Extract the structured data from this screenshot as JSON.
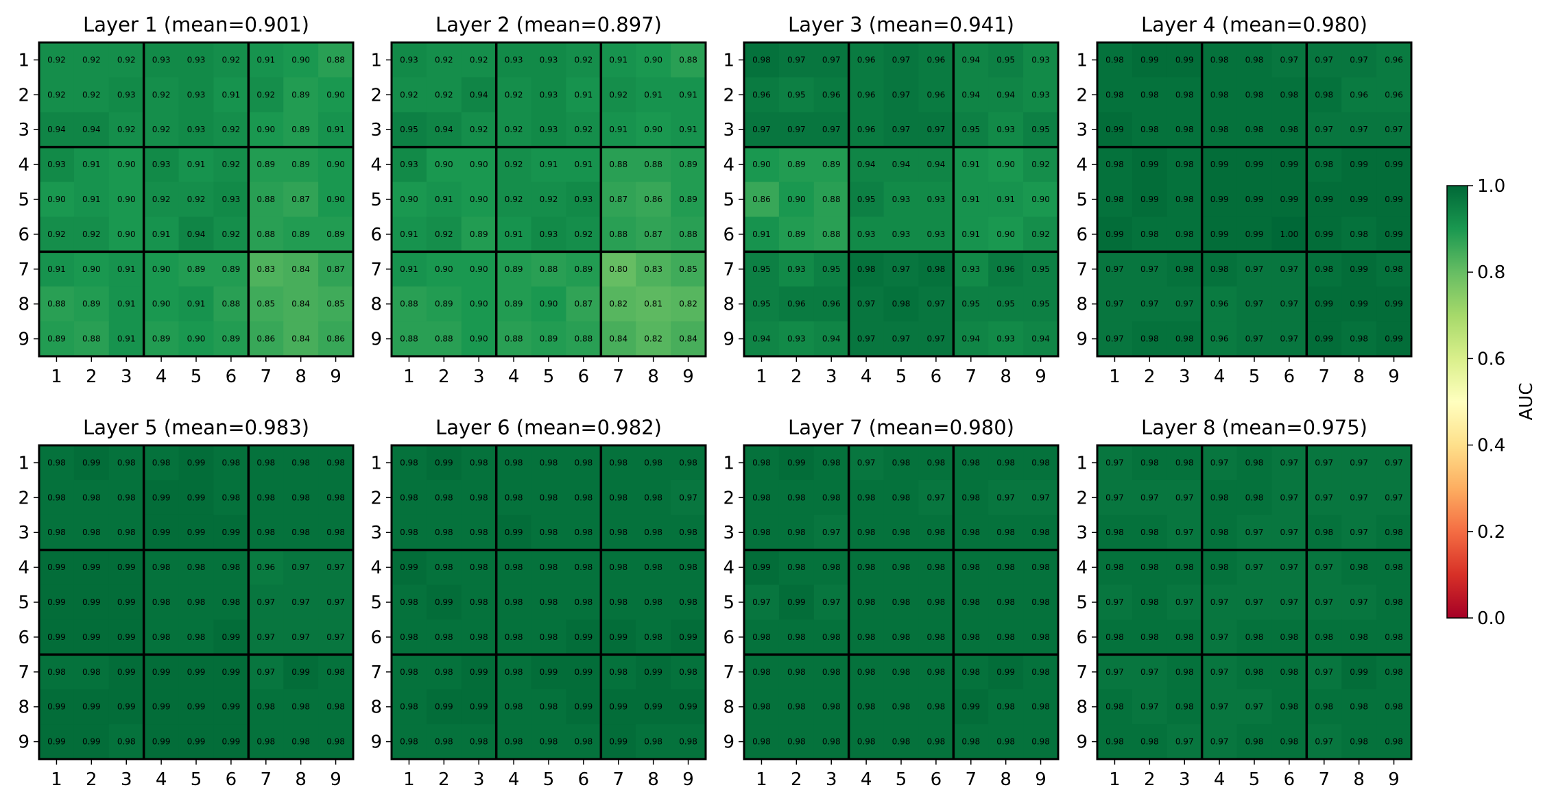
{
  "figure": {
    "colorbar": {
      "label": "AUC",
      "ticks": [
        "0.0",
        "0.2",
        "0.4",
        "0.6",
        "0.8",
        "1.0"
      ],
      "range": [
        0.0,
        1.0
      ],
      "colormap": "RdYlGn"
    }
  },
  "chart_data": [
    {
      "type": "heatmap",
      "title": "Layer 1 (mean=0.901)",
      "x_tick_labels": [
        "1",
        "2",
        "3",
        "4",
        "5",
        "6",
        "7",
        "8",
        "9"
      ],
      "y_tick_labels": [
        "1",
        "2",
        "3",
        "4",
        "5",
        "6",
        "7",
        "8",
        "9"
      ],
      "values": [
        [
          0.92,
          0.92,
          0.92,
          0.93,
          0.93,
          0.92,
          0.91,
          0.9,
          0.88
        ],
        [
          0.92,
          0.92,
          0.93,
          0.92,
          0.93,
          0.91,
          0.92,
          0.89,
          0.9
        ],
        [
          0.94,
          0.94,
          0.92,
          0.92,
          0.93,
          0.92,
          0.9,
          0.89,
          0.91
        ],
        [
          0.93,
          0.91,
          0.9,
          0.93,
          0.91,
          0.92,
          0.89,
          0.89,
          0.9
        ],
        [
          0.9,
          0.91,
          0.9,
          0.92,
          0.92,
          0.93,
          0.88,
          0.87,
          0.9
        ],
        [
          0.92,
          0.92,
          0.9,
          0.91,
          0.94,
          0.92,
          0.88,
          0.89,
          0.89
        ],
        [
          0.91,
          0.9,
          0.91,
          0.9,
          0.89,
          0.89,
          0.83,
          0.84,
          0.87
        ],
        [
          0.88,
          0.89,
          0.91,
          0.9,
          0.91,
          0.88,
          0.85,
          0.84,
          0.85
        ],
        [
          0.89,
          0.88,
          0.91,
          0.89,
          0.9,
          0.89,
          0.86,
          0.84,
          0.86
        ]
      ]
    },
    {
      "type": "heatmap",
      "title": "Layer 2 (mean=0.897)",
      "x_tick_labels": [
        "1",
        "2",
        "3",
        "4",
        "5",
        "6",
        "7",
        "8",
        "9"
      ],
      "y_tick_labels": [
        "1",
        "2",
        "3",
        "4",
        "5",
        "6",
        "7",
        "8",
        "9"
      ],
      "values": [
        [
          0.93,
          0.92,
          0.92,
          0.93,
          0.93,
          0.92,
          0.91,
          0.9,
          0.88
        ],
        [
          0.92,
          0.92,
          0.94,
          0.92,
          0.93,
          0.91,
          0.92,
          0.91,
          0.91
        ],
        [
          0.95,
          0.94,
          0.92,
          0.92,
          0.93,
          0.92,
          0.91,
          0.9,
          0.91
        ],
        [
          0.93,
          0.9,
          0.9,
          0.92,
          0.91,
          0.91,
          0.88,
          0.88,
          0.89
        ],
        [
          0.9,
          0.91,
          0.9,
          0.92,
          0.92,
          0.93,
          0.87,
          0.86,
          0.89
        ],
        [
          0.91,
          0.92,
          0.89,
          0.91,
          0.93,
          0.92,
          0.88,
          0.87,
          0.88
        ],
        [
          0.91,
          0.9,
          0.9,
          0.89,
          0.88,
          0.89,
          0.8,
          0.83,
          0.85
        ],
        [
          0.88,
          0.89,
          0.9,
          0.89,
          0.9,
          0.87,
          0.82,
          0.81,
          0.82
        ],
        [
          0.88,
          0.88,
          0.9,
          0.88,
          0.89,
          0.88,
          0.84,
          0.82,
          0.84
        ]
      ]
    },
    {
      "type": "heatmap",
      "title": "Layer 3 (mean=0.941)",
      "x_tick_labels": [
        "1",
        "2",
        "3",
        "4",
        "5",
        "6",
        "7",
        "8",
        "9"
      ],
      "y_tick_labels": [
        "1",
        "2",
        "3",
        "4",
        "5",
        "6",
        "7",
        "8",
        "9"
      ],
      "values": [
        [
          0.98,
          0.97,
          0.97,
          0.96,
          0.97,
          0.96,
          0.94,
          0.95,
          0.93
        ],
        [
          0.96,
          0.95,
          0.96,
          0.96,
          0.97,
          0.96,
          0.94,
          0.94,
          0.93
        ],
        [
          0.97,
          0.97,
          0.97,
          0.96,
          0.97,
          0.97,
          0.95,
          0.93,
          0.95
        ],
        [
          0.9,
          0.89,
          0.89,
          0.94,
          0.94,
          0.94,
          0.91,
          0.9,
          0.92
        ],
        [
          0.86,
          0.9,
          0.88,
          0.95,
          0.93,
          0.93,
          0.91,
          0.91,
          0.9
        ],
        [
          0.91,
          0.89,
          0.88,
          0.93,
          0.93,
          0.93,
          0.91,
          0.9,
          0.92
        ],
        [
          0.95,
          0.93,
          0.95,
          0.98,
          0.97,
          0.98,
          0.93,
          0.96,
          0.95
        ],
        [
          0.95,
          0.96,
          0.96,
          0.97,
          0.98,
          0.97,
          0.95,
          0.95,
          0.95
        ],
        [
          0.94,
          0.93,
          0.94,
          0.97,
          0.97,
          0.97,
          0.94,
          0.93,
          0.94
        ]
      ]
    },
    {
      "type": "heatmap",
      "title": "Layer 4 (mean=0.980)",
      "x_tick_labels": [
        "1",
        "2",
        "3",
        "4",
        "5",
        "6",
        "7",
        "8",
        "9"
      ],
      "y_tick_labels": [
        "1",
        "2",
        "3",
        "4",
        "5",
        "6",
        "7",
        "8",
        "9"
      ],
      "values": [
        [
          0.98,
          0.99,
          0.99,
          0.98,
          0.98,
          0.97,
          0.97,
          0.97,
          0.96
        ],
        [
          0.98,
          0.98,
          0.98,
          0.98,
          0.98,
          0.98,
          0.98,
          0.96,
          0.96
        ],
        [
          0.99,
          0.98,
          0.98,
          0.98,
          0.98,
          0.98,
          0.97,
          0.97,
          0.97
        ],
        [
          0.98,
          0.99,
          0.98,
          0.99,
          0.99,
          0.99,
          0.98,
          0.99,
          0.99
        ],
        [
          0.98,
          0.99,
          0.98,
          0.99,
          0.99,
          0.99,
          0.99,
          0.99,
          0.99
        ],
        [
          0.99,
          0.98,
          0.98,
          0.99,
          0.99,
          1.0,
          0.99,
          0.98,
          0.99
        ],
        [
          0.97,
          0.97,
          0.98,
          0.98,
          0.97,
          0.97,
          0.98,
          0.99,
          0.98
        ],
        [
          0.97,
          0.97,
          0.97,
          0.96,
          0.97,
          0.97,
          0.99,
          0.99,
          0.99
        ],
        [
          0.97,
          0.98,
          0.98,
          0.96,
          0.97,
          0.97,
          0.99,
          0.98,
          0.99
        ]
      ]
    },
    {
      "type": "heatmap",
      "title": "Layer 5 (mean=0.983)",
      "x_tick_labels": [
        "1",
        "2",
        "3",
        "4",
        "5",
        "6",
        "7",
        "8",
        "9"
      ],
      "y_tick_labels": [
        "1",
        "2",
        "3",
        "4",
        "5",
        "6",
        "7",
        "8",
        "9"
      ],
      "values": [
        [
          0.98,
          0.99,
          0.98,
          0.98,
          0.99,
          0.98,
          0.98,
          0.98,
          0.98
        ],
        [
          0.98,
          0.98,
          0.98,
          0.99,
          0.99,
          0.98,
          0.98,
          0.98,
          0.98
        ],
        [
          0.98,
          0.98,
          0.98,
          0.99,
          0.99,
          0.99,
          0.98,
          0.98,
          0.98
        ],
        [
          0.99,
          0.99,
          0.99,
          0.98,
          0.98,
          0.98,
          0.96,
          0.97,
          0.97
        ],
        [
          0.99,
          0.99,
          0.99,
          0.98,
          0.98,
          0.98,
          0.97,
          0.97,
          0.97
        ],
        [
          0.99,
          0.99,
          0.99,
          0.98,
          0.98,
          0.99,
          0.97,
          0.97,
          0.97
        ],
        [
          0.98,
          0.98,
          0.99,
          0.99,
          0.99,
          0.99,
          0.97,
          0.99,
          0.98
        ],
        [
          0.99,
          0.99,
          0.99,
          0.99,
          0.99,
          0.99,
          0.98,
          0.98,
          0.98
        ],
        [
          0.99,
          0.99,
          0.98,
          0.99,
          0.99,
          0.99,
          0.98,
          0.98,
          0.98
        ]
      ]
    },
    {
      "type": "heatmap",
      "title": "Layer 6 (mean=0.982)",
      "x_tick_labels": [
        "1",
        "2",
        "3",
        "4",
        "5",
        "6",
        "7",
        "8",
        "9"
      ],
      "y_tick_labels": [
        "1",
        "2",
        "3",
        "4",
        "5",
        "6",
        "7",
        "8",
        "9"
      ],
      "values": [
        [
          0.98,
          0.99,
          0.98,
          0.98,
          0.98,
          0.98,
          0.98,
          0.98,
          0.98
        ],
        [
          0.98,
          0.98,
          0.98,
          0.98,
          0.98,
          0.98,
          0.98,
          0.98,
          0.97
        ],
        [
          0.98,
          0.98,
          0.98,
          0.99,
          0.98,
          0.98,
          0.98,
          0.98,
          0.98
        ],
        [
          0.99,
          0.98,
          0.98,
          0.98,
          0.98,
          0.98,
          0.98,
          0.98,
          0.98
        ],
        [
          0.98,
          0.99,
          0.98,
          0.98,
          0.98,
          0.98,
          0.98,
          0.98,
          0.98
        ],
        [
          0.98,
          0.98,
          0.98,
          0.98,
          0.98,
          0.99,
          0.99,
          0.98,
          0.99
        ],
        [
          0.98,
          0.98,
          0.99,
          0.98,
          0.99,
          0.99,
          0.98,
          0.99,
          0.98
        ],
        [
          0.98,
          0.99,
          0.99,
          0.98,
          0.98,
          0.99,
          0.99,
          0.99,
          0.99
        ],
        [
          0.98,
          0.98,
          0.98,
          0.98,
          0.98,
          0.98,
          0.99,
          0.98,
          0.98
        ]
      ]
    },
    {
      "type": "heatmap",
      "title": "Layer 7 (mean=0.980)",
      "x_tick_labels": [
        "1",
        "2",
        "3",
        "4",
        "5",
        "6",
        "7",
        "8",
        "9"
      ],
      "y_tick_labels": [
        "1",
        "2",
        "3",
        "4",
        "5",
        "6",
        "7",
        "8",
        "9"
      ],
      "values": [
        [
          0.98,
          0.99,
          0.98,
          0.97,
          0.98,
          0.98,
          0.98,
          0.98,
          0.98
        ],
        [
          0.98,
          0.98,
          0.98,
          0.98,
          0.98,
          0.97,
          0.98,
          0.97,
          0.97
        ],
        [
          0.98,
          0.98,
          0.97,
          0.98,
          0.98,
          0.98,
          0.98,
          0.98,
          0.98
        ],
        [
          0.99,
          0.98,
          0.98,
          0.98,
          0.98,
          0.98,
          0.98,
          0.98,
          0.98
        ],
        [
          0.97,
          0.99,
          0.97,
          0.98,
          0.98,
          0.98,
          0.98,
          0.98,
          0.98
        ],
        [
          0.98,
          0.98,
          0.98,
          0.98,
          0.98,
          0.98,
          0.98,
          0.98,
          0.98
        ],
        [
          0.98,
          0.98,
          0.98,
          0.98,
          0.98,
          0.98,
          0.98,
          0.99,
          0.98
        ],
        [
          0.98,
          0.98,
          0.98,
          0.98,
          0.98,
          0.98,
          0.99,
          0.98,
          0.98
        ],
        [
          0.98,
          0.98,
          0.98,
          0.98,
          0.98,
          0.98,
          0.98,
          0.98,
          0.98
        ]
      ]
    },
    {
      "type": "heatmap",
      "title": "Layer 8 (mean=0.975)",
      "x_tick_labels": [
        "1",
        "2",
        "3",
        "4",
        "5",
        "6",
        "7",
        "8",
        "9"
      ],
      "y_tick_labels": [
        "1",
        "2",
        "3",
        "4",
        "5",
        "6",
        "7",
        "8",
        "9"
      ],
      "values": [
        [
          0.97,
          0.98,
          0.98,
          0.97,
          0.98,
          0.97,
          0.97,
          0.97,
          0.97
        ],
        [
          0.97,
          0.97,
          0.97,
          0.98,
          0.98,
          0.97,
          0.97,
          0.97,
          0.97
        ],
        [
          0.98,
          0.98,
          0.97,
          0.98,
          0.97,
          0.97,
          0.98,
          0.97,
          0.98
        ],
        [
          0.98,
          0.98,
          0.98,
          0.98,
          0.97,
          0.97,
          0.97,
          0.98,
          0.98
        ],
        [
          0.97,
          0.98,
          0.97,
          0.97,
          0.97,
          0.97,
          0.97,
          0.97,
          0.98
        ],
        [
          0.98,
          0.98,
          0.98,
          0.97,
          0.98,
          0.98,
          0.98,
          0.98,
          0.98
        ],
        [
          0.97,
          0.97,
          0.98,
          0.97,
          0.98,
          0.98,
          0.97,
          0.99,
          0.98
        ],
        [
          0.98,
          0.97,
          0.98,
          0.97,
          0.97,
          0.98,
          0.98,
          0.98,
          0.98
        ],
        [
          0.98,
          0.98,
          0.97,
          0.97,
          0.98,
          0.98,
          0.97,
          0.98,
          0.98
        ]
      ]
    }
  ]
}
